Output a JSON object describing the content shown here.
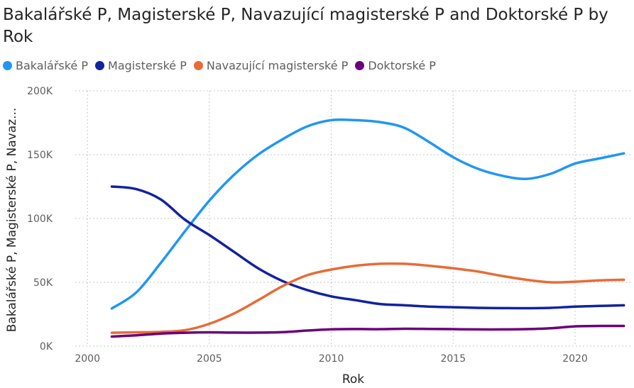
{
  "colors": {
    "bakalarske": "#2196F3",
    "magisterske": "#12239E",
    "navazujici": "#E66C37",
    "doktorske": "#6B007B"
  },
  "chart_data": {
    "type": "line",
    "title": "Bakalářské P, Magisterské P, Navazující magisterské P and Doktorské P by Rok",
    "xlabel": "Rok",
    "ylabel": "Bakalářské P, Magisterské P, Navaz...",
    "xlim": [
      1999.5,
      2022.3
    ],
    "ylim": [
      0,
      200000
    ],
    "x_ticks": [
      2000,
      2005,
      2010,
      2015,
      2020
    ],
    "y_ticks": [
      {
        "value": 0,
        "label": "0K"
      },
      {
        "value": 50000,
        "label": "50K"
      },
      {
        "value": 100000,
        "label": "100K"
      },
      {
        "value": 150000,
        "label": "150K"
      },
      {
        "value": 200000,
        "label": "200K"
      }
    ],
    "grid": true,
    "legend_position": "top-left",
    "x": [
      2001,
      2002,
      2003,
      2004,
      2005,
      2006,
      2007,
      2008,
      2009,
      2010,
      2011,
      2012,
      2013,
      2014,
      2015,
      2016,
      2017,
      2018,
      2019,
      2020,
      2021,
      2022
    ],
    "series": [
      {
        "name": "Bakalářské P",
        "color_key": "bakalarske",
        "values": [
          29500,
          42000,
          65000,
          90000,
          114000,
          134000,
          150000,
          162000,
          172000,
          177000,
          177000,
          175500,
          171000,
          160000,
          148000,
          139000,
          133500,
          131000,
          135000,
          143000,
          147000,
          151000
        ]
      },
      {
        "name": "Magisterské P",
        "color_key": "magisterske",
        "values": [
          125000,
          123000,
          115000,
          99000,
          87000,
          74000,
          61000,
          51000,
          44000,
          39000,
          36000,
          33000,
          32000,
          31000,
          30500,
          30000,
          29800,
          29700,
          30000,
          31000,
          31500,
          32000
        ]
      },
      {
        "name": "Navazující magisterské P",
        "color_key": "navazujici",
        "values": [
          10500,
          10800,
          11200,
          12500,
          17500,
          25500,
          36000,
          47000,
          55500,
          60000,
          63000,
          64500,
          64500,
          63000,
          61000,
          58500,
          55000,
          52000,
          50000,
          50500,
          51500,
          52000
        ]
      },
      {
        "name": "Doktorské P",
        "color_key": "doktorske",
        "values": [
          7500,
          8500,
          9800,
          10500,
          10800,
          10600,
          10600,
          11000,
          12200,
          13200,
          13400,
          13300,
          13600,
          13500,
          13300,
          13100,
          13100,
          13300,
          14000,
          15500,
          15800,
          15800
        ]
      }
    ]
  }
}
